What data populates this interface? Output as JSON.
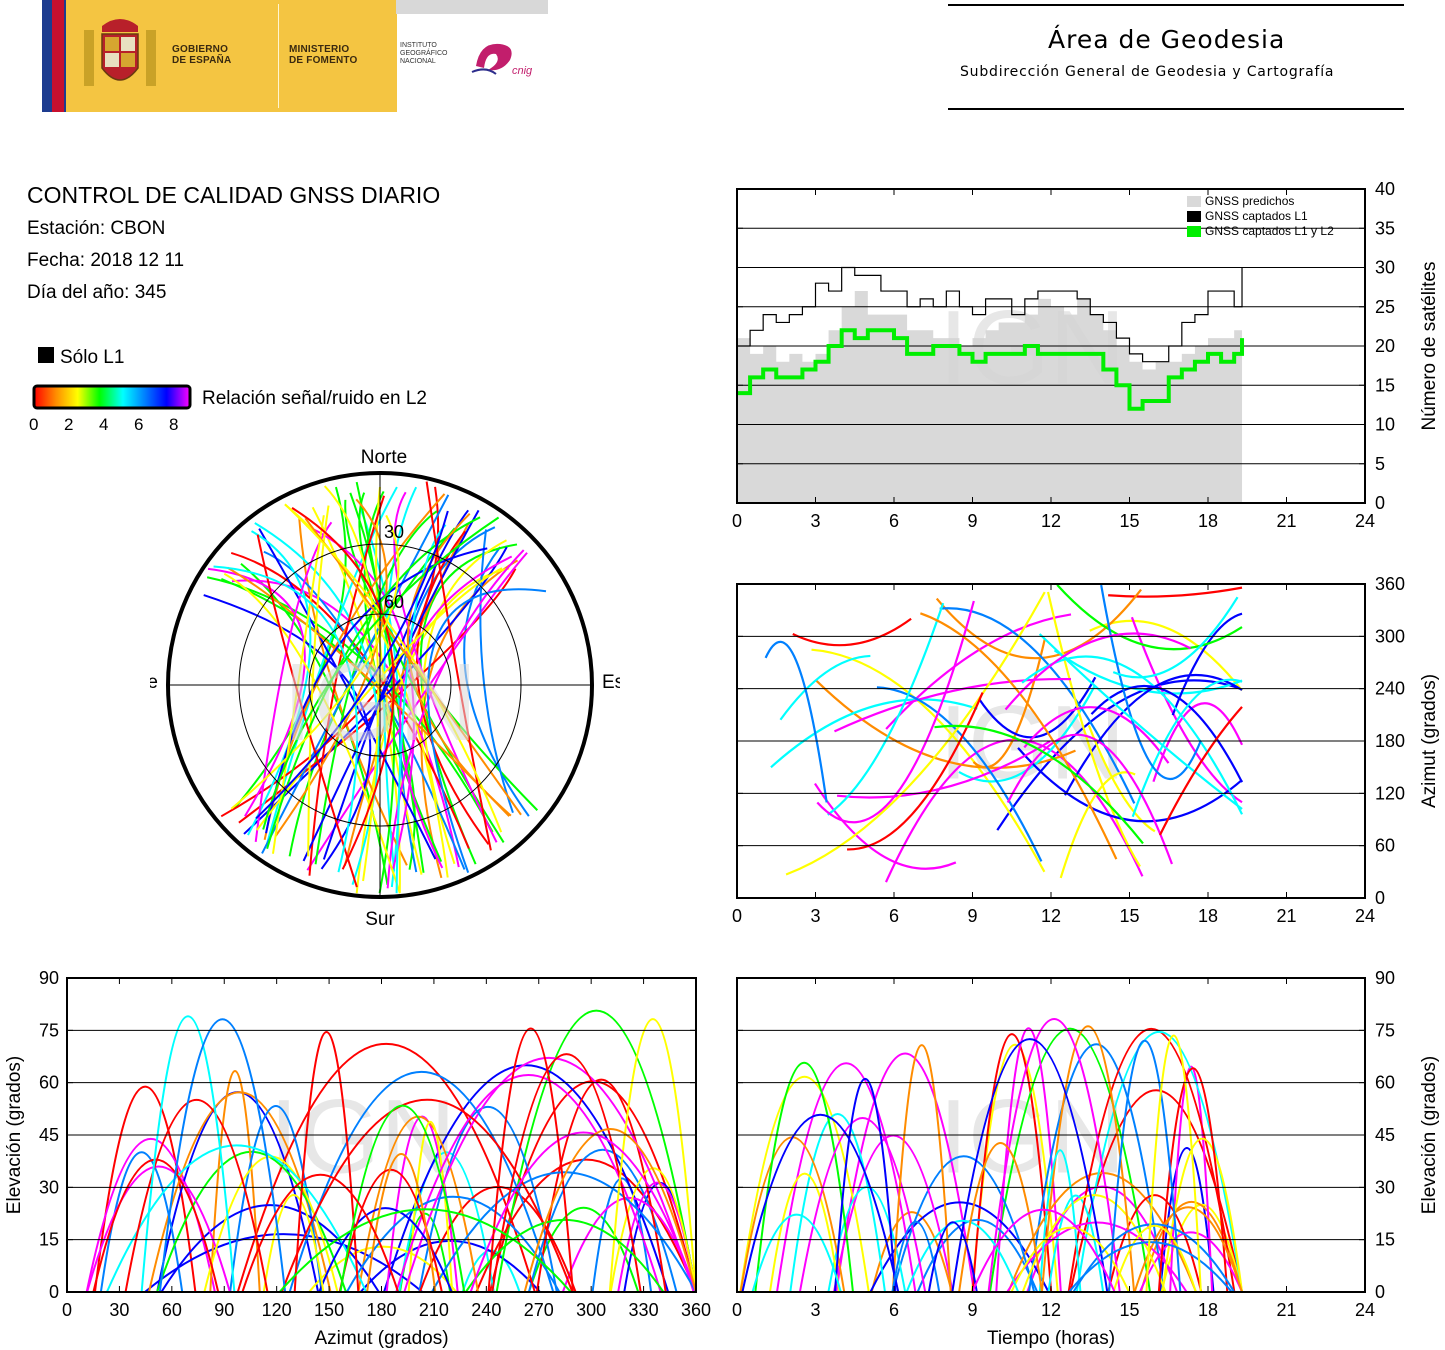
{
  "header": {
    "gobierno": "GOBIERNO\nDE ESPAÑA",
    "ministerio": "MINISTERIO\nDE FOMENTO",
    "instituto": "INSTITUTO\nGEOGRÁFICO\nNACIONAL",
    "cnig": "cnig",
    "area_title": "Área de Geodesia",
    "area_subtitle": "Subdirección General de Geodesia y Cartografía"
  },
  "info": {
    "title": "CONTROL DE CALIDAD GNSS DIARIO",
    "station": "Estación: CBON",
    "date": "Fecha: 2018 12 11",
    "doy": "Día del año: 345",
    "l1_only": "Sólo L1",
    "snr_label": "Relación señal/ruido en L2",
    "snr_ticks": [
      "0",
      "2",
      "4",
      "6",
      "8"
    ]
  },
  "watermark": "IGN",
  "colors": {
    "l1_only": "#000000",
    "predicted": "#d9d9d9",
    "captured_l1": "#000000",
    "captured_l1l2": "#00ee00",
    "snr_scale": [
      "#ff0000",
      "#ff8c00",
      "#ffff00",
      "#00ff00",
      "#00ffff",
      "#0080ff",
      "#0000ff",
      "#ff00ff"
    ]
  },
  "chart_data": [
    {
      "id": "satellite_count",
      "type": "line",
      "ylabel": "Número de satélites",
      "xlim": [
        0,
        24
      ],
      "ylim": [
        0,
        40
      ],
      "xticks": [
        "0",
        "3",
        "6",
        "9",
        "12",
        "15",
        "18",
        "21",
        "24"
      ],
      "yticks": [
        "0",
        "5",
        "10",
        "15",
        "20",
        "25",
        "30",
        "35",
        "40"
      ],
      "grid": "horizontal",
      "legend_position": "top-right",
      "x": [
        0,
        0.5,
        1,
        1.5,
        2,
        2.5,
        3,
        3.5,
        4,
        4.5,
        5,
        5.5,
        6,
        6.5,
        7,
        7.5,
        8,
        8.5,
        9,
        9.5,
        10,
        10.5,
        11,
        11.5,
        12,
        12.5,
        13,
        13.5,
        14,
        14.5,
        15,
        15.5,
        16,
        16.5,
        17,
        17.5,
        18,
        18.5,
        19,
        19.3
      ],
      "series": [
        {
          "name": "GNSS predichos",
          "values": [
            21,
            19,
            20,
            18,
            19,
            18,
            19,
            22,
            25,
            27,
            24,
            24,
            24,
            22,
            22,
            21,
            21,
            20,
            21,
            22,
            23,
            23,
            24,
            26,
            25,
            24,
            26,
            24,
            22,
            20,
            18,
            17,
            18,
            18,
            19,
            20,
            21,
            21,
            22,
            22
          ]
        },
        {
          "name": "GNSS captados L1",
          "values": [
            20,
            22,
            24,
            23,
            24,
            25,
            28,
            27,
            30,
            29,
            29,
            27,
            27,
            25,
            26,
            25,
            27,
            25,
            24,
            26,
            26,
            24,
            26,
            27,
            27,
            27,
            26,
            24,
            23,
            21,
            19,
            18,
            18,
            20,
            23,
            24,
            27,
            27,
            25,
            30
          ]
        },
        {
          "name": "GNSS captados L1 y L2",
          "values": [
            14,
            16,
            17,
            16,
            16,
            17,
            18,
            20,
            22,
            21,
            22,
            22,
            21,
            19,
            19,
            20,
            20,
            19,
            18,
            19,
            19,
            19,
            20,
            19,
            19,
            19,
            19,
            19,
            17,
            15,
            12,
            13,
            13,
            16,
            17,
            18,
            19,
            18,
            19,
            21
          ]
        }
      ]
    },
    {
      "id": "skyplot",
      "type": "scatter",
      "directions": [
        "Norte",
        "Sur",
        "Este",
        "Oeste"
      ],
      "ring_labels": [
        "30",
        "60"
      ]
    },
    {
      "id": "azimuth_vs_time",
      "type": "scatter",
      "xlim": [
        0,
        24
      ],
      "ylim": [
        0,
        360
      ],
      "ylabel": "Azimut (grados)",
      "xticks": [
        "0",
        "3",
        "6",
        "9",
        "12",
        "15",
        "18",
        "21",
        "24"
      ],
      "yticks": [
        "0",
        "60",
        "120",
        "180",
        "240",
        "300",
        "360"
      ],
      "grid": "horizontal"
    },
    {
      "id": "elevation_vs_azimuth",
      "type": "scatter",
      "xlim": [
        0,
        360
      ],
      "ylim": [
        0,
        90
      ],
      "xlabel": "Azimut (grados)",
      "ylabel": "Elevación (grados)",
      "xticks": [
        "0",
        "30",
        "60",
        "90",
        "120",
        "150",
        "180",
        "210",
        "240",
        "270",
        "300",
        "330",
        "360"
      ],
      "yticks": [
        "0",
        "15",
        "30",
        "45",
        "60",
        "75",
        "90"
      ],
      "grid": "horizontal"
    },
    {
      "id": "elevation_vs_time",
      "type": "scatter",
      "xlim": [
        0,
        24
      ],
      "ylim": [
        0,
        90
      ],
      "xlabel": "Tiempo (horas)",
      "ylabel": "Elevación (grados)",
      "xticks": [
        "0",
        "3",
        "6",
        "9",
        "12",
        "15",
        "18",
        "21",
        "24"
      ],
      "yticks": [
        "0",
        "15",
        "30",
        "45",
        "60",
        "75",
        "90"
      ],
      "grid": "horizontal"
    }
  ]
}
